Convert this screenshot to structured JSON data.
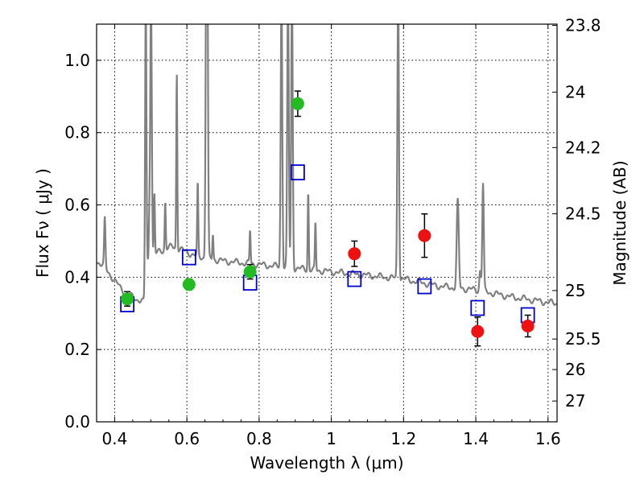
{
  "chart_data": {
    "type": "scatter",
    "xlabel": "Wavelength  λ (μm)",
    "ylabel": "Flux  Fν  ( μJy )",
    "ylabel_right": "Magnitude (AB)",
    "xlim": [
      0.35,
      1.625
    ],
    "ylim": [
      0.0,
      1.1
    ],
    "grid": true,
    "x_ticks": [
      "0.4",
      "0.6",
      "0.8",
      "1",
      "1.2",
      "1.4",
      "1.6"
    ],
    "y_ticks": [
      "0.0",
      "0.2",
      "0.4",
      "0.6",
      "0.8",
      "1.0"
    ],
    "right_ticks": [
      {
        "label": "23.8",
        "mag": 23.8
      },
      {
        "label": "24",
        "mag": 24.0
      },
      {
        "label": "24.2",
        "mag": 24.2
      },
      {
        "label": "24.5",
        "mag": 24.5
      },
      {
        "label": "25",
        "mag": 25.0
      },
      {
        "label": "25.5",
        "mag": 25.5
      },
      {
        "label": "26",
        "mag": 26.0
      },
      {
        "label": "27",
        "mag": 27.0
      }
    ],
    "colors": {
      "model": "#808080",
      "green": "#22bb22",
      "red": "#ee1111",
      "square": "#0000cc",
      "errorbar": "#000000"
    },
    "series": [
      {
        "kind": "model-spectrum",
        "continuum": [
          [
            0.35,
            0.445
          ],
          [
            0.37,
            0.43
          ],
          [
            0.4,
            0.39
          ],
          [
            0.43,
            0.355
          ],
          [
            0.46,
            0.34
          ],
          [
            0.485,
            0.33
          ],
          [
            0.49,
            0.44
          ],
          [
            0.52,
            0.47
          ],
          [
            0.56,
            0.485
          ],
          [
            0.6,
            0.47
          ],
          [
            0.62,
            0.46
          ],
          [
            0.67,
            0.45
          ],
          [
            0.7,
            0.445
          ],
          [
            0.75,
            0.44
          ],
          [
            0.8,
            0.435
          ],
          [
            0.85,
            0.43
          ],
          [
            0.9,
            0.425
          ],
          [
            0.95,
            0.42
          ],
          [
            1.0,
            0.415
          ],
          [
            1.05,
            0.41
          ],
          [
            1.1,
            0.405
          ],
          [
            1.15,
            0.4
          ],
          [
            1.2,
            0.395
          ],
          [
            1.25,
            0.385
          ],
          [
            1.3,
            0.375
          ],
          [
            1.35,
            0.37
          ],
          [
            1.4,
            0.365
          ],
          [
            1.45,
            0.355
          ],
          [
            1.5,
            0.345
          ],
          [
            1.55,
            0.338
          ],
          [
            1.6,
            0.33
          ],
          [
            1.625,
            0.328
          ]
        ],
        "emission_lines": [
          {
            "x": 0.3727,
            "peak": 0.56,
            "w": 0.0025
          },
          {
            "x": 0.4861,
            "peak": 1.2,
            "w": 0.0025
          },
          {
            "x": 0.4959,
            "peak": 0.55,
            "w": 0.002
          },
          {
            "x": 0.5007,
            "peak": 1.2,
            "w": 0.003
          },
          {
            "x": 0.51,
            "peak": 0.63,
            "w": 0.002
          },
          {
            "x": 0.54,
            "peak": 0.61,
            "w": 0.002
          },
          {
            "x": 0.572,
            "peak": 0.97,
            "w": 0.002
          },
          {
            "x": 0.63,
            "peak": 0.66,
            "w": 0.002
          },
          {
            "x": 0.654,
            "peak": 1.2,
            "w": 0.003
          },
          {
            "x": 0.6563,
            "peak": 1.2,
            "w": 0.003
          },
          {
            "x": 0.672,
            "peak": 0.52,
            "w": 0.002
          },
          {
            "x": 0.775,
            "peak": 0.53,
            "w": 0.002
          },
          {
            "x": 0.862,
            "peak": 1.2,
            "w": 0.003
          },
          {
            "x": 0.88,
            "peak": 1.2,
            "w": 0.003
          },
          {
            "x": 0.891,
            "peak": 1.2,
            "w": 0.003
          },
          {
            "x": 0.936,
            "peak": 0.64,
            "w": 0.002
          },
          {
            "x": 0.956,
            "peak": 0.55,
            "w": 0.002
          },
          {
            "x": 1.185,
            "peak": 1.2,
            "w": 0.003
          },
          {
            "x": 1.35,
            "peak": 0.61,
            "w": 0.004
          },
          {
            "x": 1.42,
            "peak": 0.66,
            "w": 0.003
          },
          {
            "x": 1.412,
            "peak": 0.42,
            "w": 0.003
          }
        ]
      },
      {
        "kind": "green-points",
        "points": [
          {
            "x": 0.435,
            "y": 0.34,
            "err": 0.02
          },
          {
            "x": 0.606,
            "y": 0.38,
            "err": 0.015
          },
          {
            "x": 0.775,
            "y": 0.415,
            "err": 0.02
          },
          {
            "x": 0.907,
            "y": 0.88,
            "err": 0.035
          }
        ]
      },
      {
        "kind": "red-points",
        "points": [
          {
            "x": 1.064,
            "y": 0.465,
            "err": 0.035
          },
          {
            "x": 1.258,
            "y": 0.515,
            "err": 0.06
          },
          {
            "x": 1.405,
            "y": 0.25,
            "err": 0.04
          },
          {
            "x": 1.544,
            "y": 0.265,
            "err": 0.03
          }
        ]
      },
      {
        "kind": "model-squares",
        "points": [
          {
            "x": 0.435,
            "y": 0.325
          },
          {
            "x": 0.606,
            "y": 0.455
          },
          {
            "x": 0.775,
            "y": 0.385
          },
          {
            "x": 0.907,
            "y": 0.69
          },
          {
            "x": 1.064,
            "y": 0.395
          },
          {
            "x": 1.258,
            "y": 0.375
          },
          {
            "x": 1.405,
            "y": 0.315
          },
          {
            "x": 1.544,
            "y": 0.295
          }
        ]
      }
    ]
  }
}
